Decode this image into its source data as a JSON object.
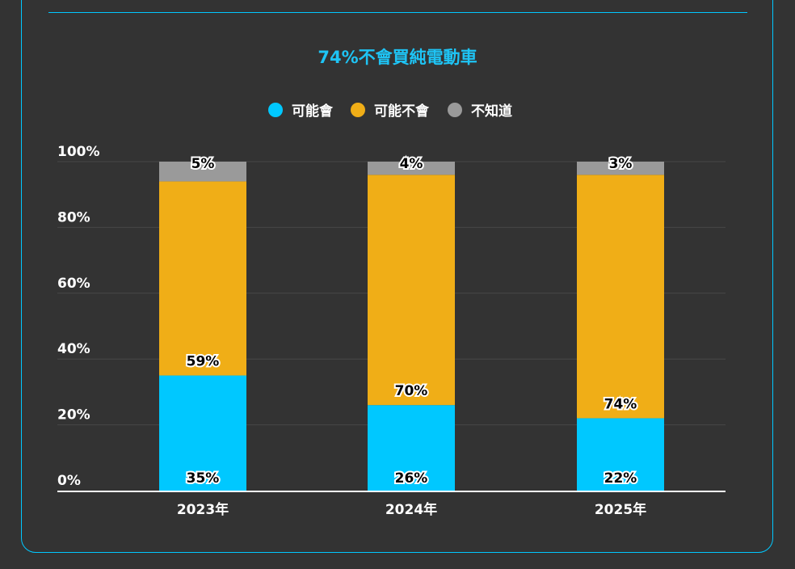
{
  "chart_data": {
    "type": "bar",
    "stacked": true,
    "title": "74%不會買純電動車",
    "categories": [
      "2023年",
      "2024年",
      "2025年"
    ],
    "series": [
      {
        "name": "可能會",
        "color": "#00c8ff",
        "values": [
          35,
          26,
          22
        ]
      },
      {
        "name": "可能不會",
        "color": "#f0ae17",
        "values": [
          59,
          70,
          74
        ]
      },
      {
        "name": "不知道",
        "color": "#9a9a9a",
        "values": [
          5,
          4,
          3
        ]
      }
    ],
    "ylim": [
      0,
      100
    ],
    "yticks": [
      "0%",
      "20%",
      "40%",
      "60%",
      "80%",
      "100%"
    ],
    "grid": true,
    "legend": "top-center",
    "xlabel": "",
    "ylabel": ""
  }
}
